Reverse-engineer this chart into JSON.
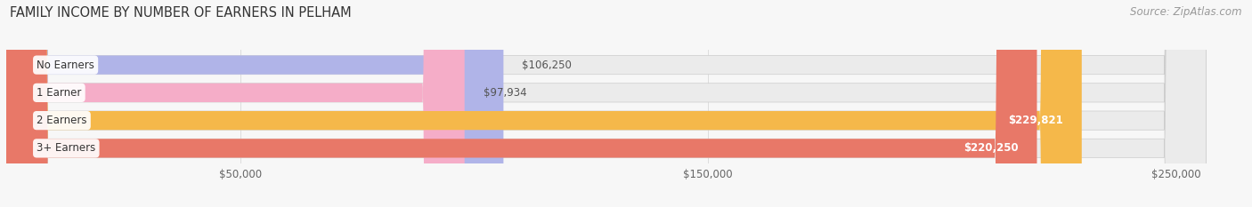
{
  "title": "FAMILY INCOME BY NUMBER OF EARNERS IN PELHAM",
  "source": "Source: ZipAtlas.com",
  "categories": [
    "No Earners",
    "1 Earner",
    "2 Earners",
    "3+ Earners"
  ],
  "values": [
    106250,
    97934,
    229821,
    220250
  ],
  "bar_colors": [
    "#b0b4e8",
    "#f5adc8",
    "#f5b84a",
    "#e87868"
  ],
  "bar_bg_color": "#ebebeb",
  "value_labels": [
    "$106,250",
    "$97,934",
    "$229,821",
    "$220,250"
  ],
  "x_ticks": [
    50000,
    150000,
    250000
  ],
  "x_tick_labels": [
    "$50,000",
    "$150,000",
    "$250,000"
  ],
  "xlim": [
    0,
    263000
  ],
  "bg_color": "#f7f7f7",
  "title_fontsize": 10.5,
  "source_fontsize": 8.5,
  "label_fontsize": 8.5,
  "value_fontsize": 8.5
}
